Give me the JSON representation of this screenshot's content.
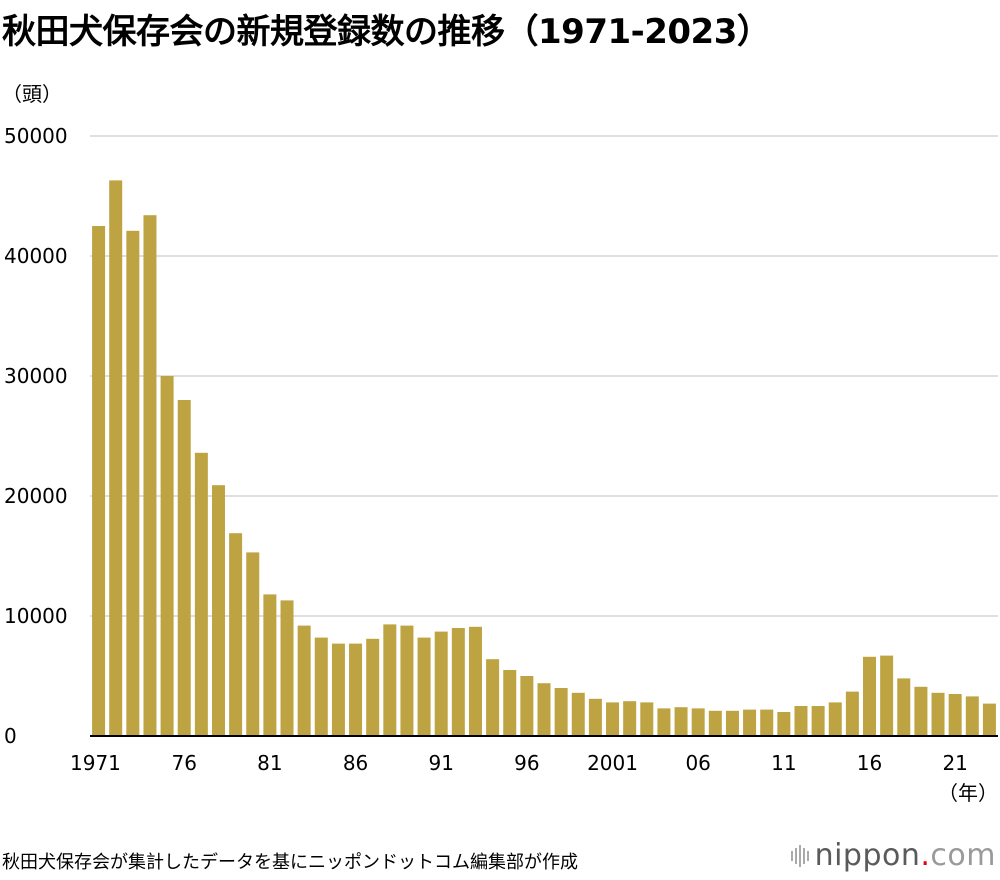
{
  "title": "秋田犬保存会の新規登録数の推移（1971-2023）",
  "source_note": "秋田犬保存会が集計したデータを基にニッポンドットコム編集部が作成",
  "logo": {
    "main": "nippon",
    "dot": ".",
    "suffix": "com"
  },
  "colors": {
    "bar": "#BEA343",
    "grid": "#cccccc",
    "axis": "#000000"
  },
  "chart_data": {
    "type": "bar",
    "title": "秋田犬保存会の新規登録数の推移（1971-2023）",
    "ylabel": "（頭）",
    "xlabel": "（年）",
    "ylim": [
      0,
      50000
    ],
    "yticks": [
      0,
      10000,
      20000,
      30000,
      40000,
      50000
    ],
    "grid": true,
    "x_tick_labels": [
      {
        "year": 1971,
        "label": "1971"
      },
      {
        "year": 1976,
        "label": "76"
      },
      {
        "year": 1981,
        "label": "81"
      },
      {
        "year": 1986,
        "label": "86"
      },
      {
        "year": 1991,
        "label": "91"
      },
      {
        "year": 1996,
        "label": "96"
      },
      {
        "year": 2001,
        "label": "2001"
      },
      {
        "year": 2006,
        "label": "06"
      },
      {
        "year": 2011,
        "label": "11"
      },
      {
        "year": 2016,
        "label": "16"
      },
      {
        "year": 2021,
        "label": "21"
      }
    ],
    "categories": [
      1971,
      1972,
      1973,
      1974,
      1975,
      1976,
      1977,
      1978,
      1979,
      1980,
      1981,
      1982,
      1983,
      1984,
      1985,
      1986,
      1987,
      1988,
      1989,
      1990,
      1991,
      1992,
      1993,
      1994,
      1995,
      1996,
      1997,
      1998,
      1999,
      2000,
      2001,
      2002,
      2003,
      2004,
      2005,
      2006,
      2007,
      2008,
      2009,
      2010,
      2011,
      2012,
      2013,
      2014,
      2015,
      2016,
      2017,
      2018,
      2019,
      2020,
      2021,
      2022,
      2023
    ],
    "values": [
      42500,
      46300,
      42100,
      43400,
      30000,
      28000,
      23600,
      20900,
      16900,
      15300,
      11800,
      11300,
      9200,
      8200,
      7700,
      7700,
      8100,
      9300,
      9200,
      8200,
      8700,
      9000,
      9100,
      6400,
      5500,
      5000,
      4400,
      4000,
      3600,
      3100,
      2800,
      2900,
      2800,
      2300,
      2400,
      2300,
      2100,
      2100,
      2200,
      2200,
      2000,
      2500,
      2500,
      2800,
      3700,
      6600,
      6700,
      4800,
      4100,
      3600,
      3500,
      3300,
      2700
    ]
  }
}
